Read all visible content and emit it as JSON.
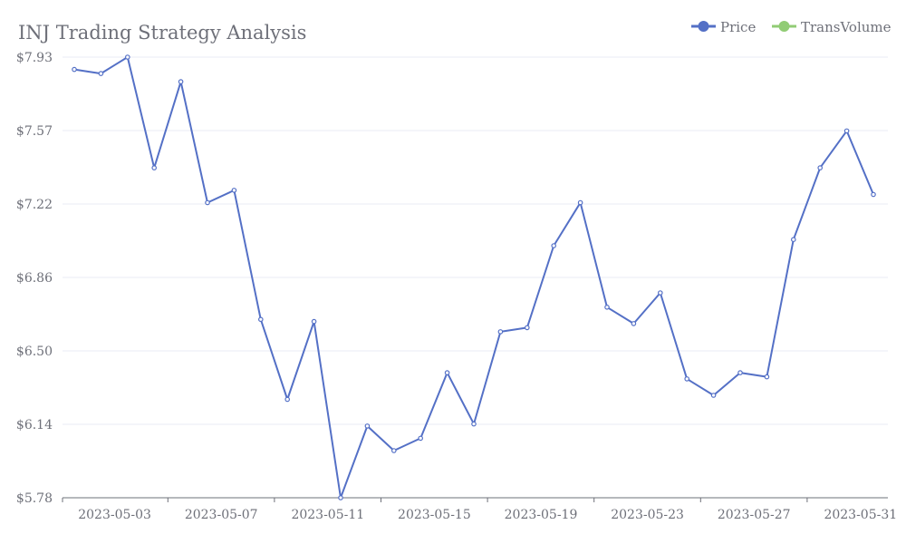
{
  "chart_data": {
    "type": "line",
    "title": "INJ Trading Strategy Analysis",
    "legend": {
      "placement": "top-right",
      "entries": [
        {
          "name": "Price",
          "color": "#5470c6"
        },
        {
          "name": "TransVolume",
          "color": "#91cc75"
        }
      ]
    },
    "x": [
      "2023-05-01",
      "2023-05-02",
      "2023-05-03",
      "2023-05-04",
      "2023-05-05",
      "2023-05-06",
      "2023-05-07",
      "2023-05-08",
      "2023-05-09",
      "2023-05-10",
      "2023-05-11",
      "2023-05-12",
      "2023-05-13",
      "2023-05-14",
      "2023-05-15",
      "2023-05-16",
      "2023-05-17",
      "2023-05-18",
      "2023-05-19",
      "2023-05-20",
      "2023-05-21",
      "2023-05-22",
      "2023-05-23",
      "2023-05-24",
      "2023-05-25",
      "2023-05-26",
      "2023-05-27",
      "2023-05-28",
      "2023-05-29",
      "2023-05-30",
      "2023-05-31"
    ],
    "x_tick_labels": [
      "2023-05-03",
      "2023-05-07",
      "2023-05-11",
      "2023-05-15",
      "2023-05-19",
      "2023-05-23",
      "2023-05-27",
      "2023-05-31"
    ],
    "y_tick_labels": [
      "$5.78",
      "$6.14",
      "$6.50",
      "$6.86",
      "$7.22",
      "$7.57",
      "$7.93"
    ],
    "ylim": [
      5.78,
      7.93
    ],
    "grid": true,
    "series": [
      {
        "name": "Price",
        "color": "#5470c6",
        "values": [
          7.87,
          7.85,
          7.93,
          7.39,
          7.81,
          7.22,
          7.28,
          6.65,
          6.26,
          6.64,
          5.78,
          6.13,
          6.01,
          6.07,
          6.39,
          6.14,
          6.59,
          6.61,
          7.01,
          7.22,
          6.71,
          6.63,
          6.78,
          6.36,
          6.28,
          6.39,
          6.37,
          7.04,
          7.39,
          7.57,
          7.26
        ]
      }
    ]
  }
}
